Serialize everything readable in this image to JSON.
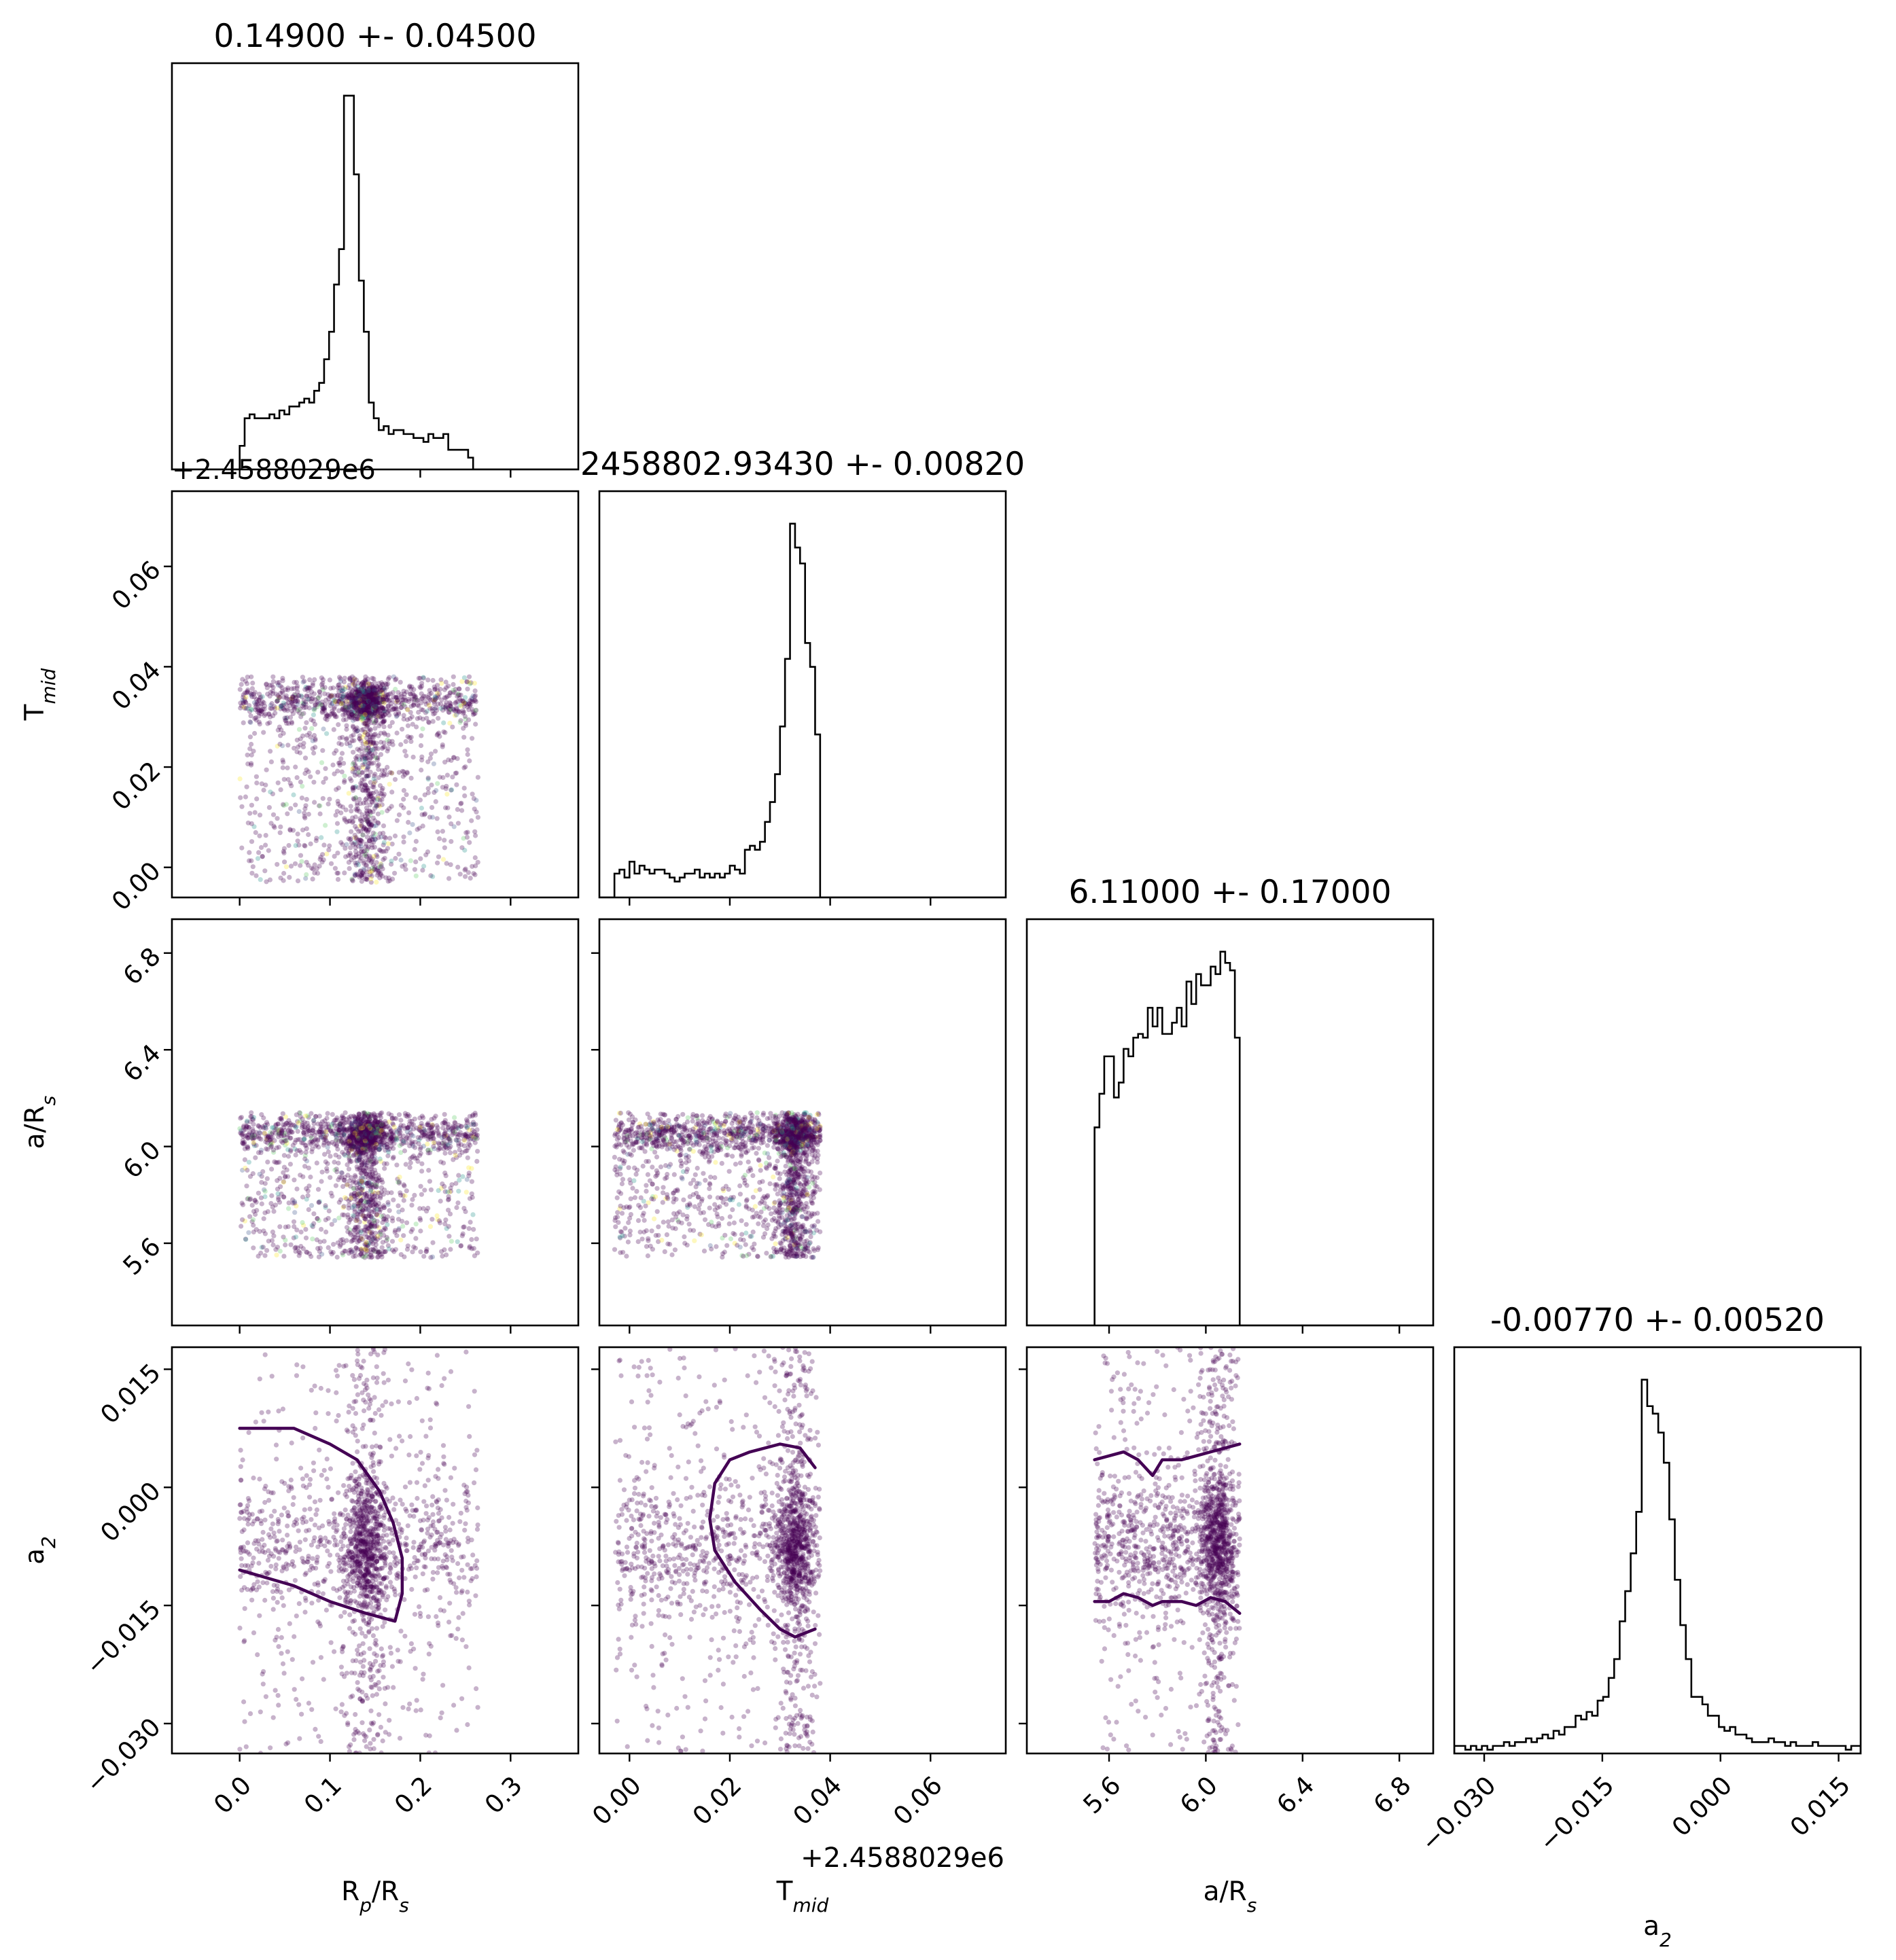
{
  "chart_data": {
    "type": "corner",
    "colors": {
      "scatter_main": "#440154",
      "scatter_palette": [
        "#440154",
        "#3b528b",
        "#21918c",
        "#5ec962",
        "#fde725"
      ],
      "contour": "#440154",
      "histogram": "#000000"
    },
    "parameters": [
      {
        "name": "Rp/Rs",
        "axis_label": "R_p/R_s",
        "axis_label_main": "R",
        "axis_label_sub": "p",
        "axis_label_rest": "/R",
        "axis_label_sub2": "s",
        "title": "0.14900 +- 0.04500",
        "lim": [
          -0.075,
          0.375
        ],
        "ticks": [
          0.0,
          0.1,
          0.2,
          0.3
        ],
        "tick_labels": [
          "0.0",
          "0.1",
          "0.2",
          "0.3"
        ],
        "histogram": {
          "bins": [
            0.0,
            0.0055,
            0.011,
            0.0165,
            0.022,
            0.0275,
            0.033,
            0.0385,
            0.044,
            0.0495,
            0.055,
            0.0605,
            0.066,
            0.0715,
            0.077,
            0.0825,
            0.088,
            0.0935,
            0.099,
            0.1045,
            0.11,
            0.1155,
            0.121,
            0.1265,
            0.132,
            0.1375,
            0.143,
            0.1485,
            0.154,
            0.1595,
            0.165,
            0.1705,
            0.176,
            0.1815,
            0.187,
            0.1925,
            0.198,
            0.2035,
            0.209,
            0.2145,
            0.22,
            0.2255,
            0.231,
            0.2365,
            0.242,
            0.2475,
            0.253,
            0.2585,
            0.264
          ],
          "counts": [
            0.06,
            0.13,
            0.14,
            0.13,
            0.13,
            0.13,
            0.14,
            0.13,
            0.15,
            0.14,
            0.16,
            0.16,
            0.17,
            0.18,
            0.17,
            0.2,
            0.22,
            0.28,
            0.35,
            0.47,
            0.56,
            0.95,
            0.95,
            0.75,
            0.48,
            0.35,
            0.17,
            0.13,
            0.1,
            0.11,
            0.09,
            0.1,
            0.1,
            0.09,
            0.09,
            0.08,
            0.08,
            0.07,
            0.09,
            0.08,
            0.08,
            0.09,
            0.05,
            0.05,
            0.05,
            0.05,
            0.03,
            0.0
          ]
        }
      },
      {
        "name": "Tmid",
        "axis_label": "T_mid",
        "axis_label_main": "T",
        "axis_label_sub": "mid",
        "title": "2458802.93430 +- 0.00820",
        "lim": [
          -0.006,
          0.075
        ],
        "ticks": [
          0.0,
          0.02,
          0.04,
          0.06
        ],
        "tick_labels": [
          "0.00",
          "0.02",
          "0.04",
          "0.06"
        ],
        "offset_text": "+2.4588029e6",
        "histogram": {
          "bins": [
            -0.003,
            -0.002,
            -0.001,
            0.0,
            0.001,
            0.002,
            0.003,
            0.004,
            0.005,
            0.006,
            0.007,
            0.008,
            0.009,
            0.01,
            0.011,
            0.012,
            0.013,
            0.014,
            0.015,
            0.016,
            0.017,
            0.018,
            0.019,
            0.02,
            0.021,
            0.022,
            0.023,
            0.024,
            0.025,
            0.026,
            0.027,
            0.028,
            0.029,
            0.03,
            0.031,
            0.032,
            0.033,
            0.034,
            0.035,
            0.036,
            0.037,
            0.038
          ],
          "counts": [
            0.06,
            0.07,
            0.05,
            0.09,
            0.06,
            0.08,
            0.07,
            0.06,
            0.07,
            0.07,
            0.06,
            0.05,
            0.04,
            0.05,
            0.06,
            0.06,
            0.07,
            0.05,
            0.06,
            0.05,
            0.06,
            0.05,
            0.06,
            0.08,
            0.07,
            0.06,
            0.12,
            0.13,
            0.12,
            0.14,
            0.19,
            0.24,
            0.31,
            0.43,
            0.6,
            0.94,
            0.88,
            0.84,
            0.64,
            0.58,
            0.41
          ]
        }
      },
      {
        "name": "a/Rs",
        "axis_label": "a/R_s",
        "axis_label_main": "a/R",
        "axis_label_sub": "s",
        "title": "6.11000 +- 0.17000",
        "lim": [
          5.26,
          6.94
        ],
        "ticks": [
          5.6,
          6.0,
          6.4,
          6.8
        ],
        "tick_labels": [
          "5.6",
          "6.0",
          "6.4",
          "6.8"
        ],
        "histogram": {
          "bins": [
            5.54,
            5.56,
            5.58,
            5.6,
            5.62,
            5.64,
            5.66,
            5.68,
            5.7,
            5.72,
            5.74,
            5.76,
            5.78,
            5.8,
            5.82,
            5.84,
            5.86,
            5.88,
            5.9,
            5.92,
            5.94,
            5.96,
            5.98,
            6.0,
            6.02,
            6.04,
            6.06,
            6.08,
            6.1,
            6.12,
            6.14
          ],
          "counts": [
            0.53,
            0.62,
            0.72,
            0.72,
            0.61,
            0.65,
            0.74,
            0.72,
            0.77,
            0.78,
            0.77,
            0.85,
            0.8,
            0.85,
            0.78,
            0.78,
            0.81,
            0.85,
            0.8,
            0.92,
            0.86,
            0.94,
            0.91,
            0.91,
            0.96,
            0.94,
            1.0,
            0.97,
            0.95,
            0.77
          ]
        }
      },
      {
        "name": "a2",
        "axis_label": "a_2",
        "axis_label_main": "a",
        "axis_label_sub": "2",
        "title": "-0.00770 +- 0.00520",
        "lim": [
          -0.0338,
          0.0178
        ],
        "ticks": [
          -0.03,
          -0.015,
          0.0,
          0.015
        ],
        "tick_labels": [
          "−0.030",
          "−0.015",
          "0.000",
          "0.015"
        ],
        "histogram": {
          "bins": [
            -0.0338,
            -0.0331,
            -0.0324,
            -0.0317,
            -0.031,
            -0.0303,
            -0.0296,
            -0.0289,
            -0.0282,
            -0.0275,
            -0.0268,
            -0.0261,
            -0.0254,
            -0.0247,
            -0.024,
            -0.0233,
            -0.0226,
            -0.0219,
            -0.0212,
            -0.0205,
            -0.0198,
            -0.0191,
            -0.0184,
            -0.0177,
            -0.017,
            -0.0163,
            -0.0156,
            -0.0149,
            -0.0142,
            -0.0135,
            -0.0128,
            -0.0121,
            -0.0114,
            -0.0107,
            -0.01,
            -0.0093,
            -0.0086,
            -0.0079,
            -0.0072,
            -0.0065,
            -0.0058,
            -0.0051,
            -0.0044,
            -0.0037,
            -0.003,
            -0.0023,
            -0.0016,
            -0.0009,
            -0.0002,
            0.0005,
            0.0012,
            0.0019,
            0.0026,
            0.0033,
            0.004,
            0.0047,
            0.0054,
            0.0061,
            0.0068,
            0.0075,
            0.0082,
            0.0089,
            0.0096,
            0.0103,
            0.011,
            0.0117,
            0.0124,
            0.0131,
            0.0138,
            0.0145,
            0.0152,
            0.0159,
            0.0166,
            0.0173,
            0.0178
          ],
          "counts": [
            0.02,
            0.02,
            0.01,
            0.02,
            0.01,
            0.02,
            0.01,
            0.02,
            0.02,
            0.03,
            0.02,
            0.03,
            0.03,
            0.04,
            0.03,
            0.04,
            0.05,
            0.04,
            0.06,
            0.05,
            0.07,
            0.07,
            0.1,
            0.09,
            0.11,
            0.1,
            0.14,
            0.15,
            0.2,
            0.25,
            0.35,
            0.43,
            0.53,
            0.64,
            0.99,
            0.92,
            0.9,
            0.85,
            0.77,
            0.62,
            0.46,
            0.34,
            0.25,
            0.15,
            0.15,
            0.13,
            0.1,
            0.1,
            0.07,
            0.06,
            0.07,
            0.05,
            0.05,
            0.04,
            0.03,
            0.03,
            0.03,
            0.04,
            0.03,
            0.03,
            0.02,
            0.03,
            0.02,
            0.02,
            0.02,
            0.03,
            0.02,
            0.02,
            0.02,
            0.02,
            0.02,
            0.01,
            0.02,
            0.02
          ]
        }
      }
    ],
    "contours_68pct": [
      {
        "x": "Rp/Rs",
        "y": "a2",
        "points": [
          [
            0.0,
            0.0075
          ],
          [
            0.06,
            0.0075
          ],
          [
            0.1,
            0.0055
          ],
          [
            0.13,
            0.0035
          ],
          [
            0.155,
            -0.0005
          ],
          [
            0.17,
            -0.0045
          ],
          [
            0.18,
            -0.009
          ],
          [
            0.18,
            -0.0135
          ],
          [
            0.172,
            -0.017
          ],
          [
            0.14,
            -0.016
          ],
          [
            0.1,
            -0.0145
          ],
          [
            0.06,
            -0.0125
          ],
          [
            0.0,
            -0.0105
          ]
        ]
      },
      {
        "x": "Tmid",
        "y": "a2",
        "points": [
          [
            0.037,
            0.0025
          ],
          [
            0.034,
            0.005
          ],
          [
            0.03,
            0.0055
          ],
          [
            0.024,
            0.0045
          ],
          [
            0.02,
            0.0035
          ],
          [
            0.017,
            0.0005
          ],
          [
            0.016,
            -0.004
          ],
          [
            0.017,
            -0.008
          ],
          [
            0.021,
            -0.012
          ],
          [
            0.026,
            -0.0155
          ],
          [
            0.03,
            -0.018
          ],
          [
            0.033,
            -0.019
          ],
          [
            0.037,
            -0.018
          ]
        ]
      },
      {
        "x": "a/Rs",
        "y": "a2",
        "points": [
          [
            5.54,
            0.0035
          ],
          [
            5.6,
            0.004
          ],
          [
            5.66,
            0.0045
          ],
          [
            5.72,
            0.0035
          ],
          [
            5.78,
            0.0015
          ],
          [
            5.82,
            0.0035
          ],
          [
            5.9,
            0.0035
          ],
          [
            5.96,
            0.004
          ],
          [
            6.02,
            0.0045
          ],
          [
            6.08,
            0.005
          ],
          [
            6.14,
            0.0055
          ]
        ]
      },
      {
        "x": "a/Rs",
        "y": "a2",
        "points": [
          [
            5.54,
            -0.0145
          ],
          [
            5.6,
            -0.0145
          ],
          [
            5.66,
            -0.0135
          ],
          [
            5.72,
            -0.014
          ],
          [
            5.78,
            -0.015
          ],
          [
            5.82,
            -0.0145
          ],
          [
            5.9,
            -0.0145
          ],
          [
            5.96,
            -0.015
          ],
          [
            6.02,
            -0.014
          ],
          [
            6.08,
            -0.0145
          ],
          [
            6.14,
            -0.016
          ]
        ]
      }
    ],
    "scatter": {
      "ranges": {
        "Rp/Rs": [
          0.0,
          0.264
        ],
        "Tmid": [
          -0.003,
          0.038
        ],
        "a/Rs": [
          5.54,
          6.14
        ]
      },
      "modes": {
        "Rp/Rs": 0.14,
        "Tmid": 0.033,
        "a/Rs": 6.05,
        "a2": -0.0077
      }
    }
  }
}
